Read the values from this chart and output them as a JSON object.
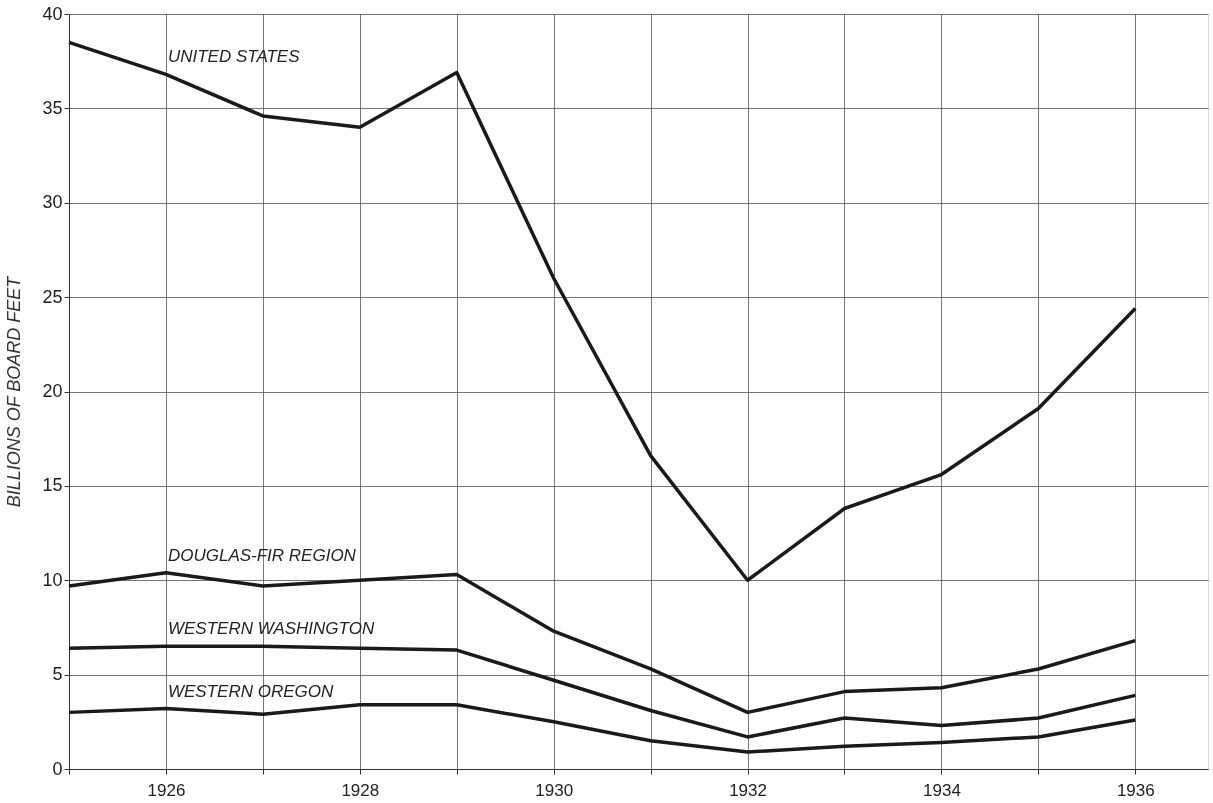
{
  "chart_data": {
    "type": "line",
    "ylabel": "BILLIONS OF BOARD FEET",
    "x": [
      1925,
      1926,
      1927,
      1928,
      1929,
      1930,
      1931,
      1932,
      1933,
      1934,
      1935,
      1936
    ],
    "series": [
      {
        "name": "UNITED STATES",
        "color": "#1a1a1a",
        "values": [
          38.5,
          36.8,
          34.6,
          34.0,
          36.9,
          26.0,
          16.6,
          10.0,
          13.8,
          15.6,
          19.1,
          24.4
        ]
      },
      {
        "name": "DOUGLAS-FIR REGION",
        "color": "#1a1a1a",
        "values": [
          9.7,
          10.4,
          9.7,
          10.0,
          10.3,
          7.3,
          5.3,
          3.0,
          4.1,
          4.3,
          5.3,
          6.8
        ]
      },
      {
        "name": "WESTERN WASHINGTON",
        "color": "#1a1a1a",
        "values": [
          6.4,
          6.5,
          6.5,
          6.4,
          6.3,
          4.7,
          3.1,
          1.7,
          2.7,
          2.3,
          2.7,
          3.9
        ]
      },
      {
        "name": "WESTERN OREGON",
        "color": "#1a1a1a",
        "values": [
          3.0,
          3.2,
          2.9,
          3.4,
          3.4,
          2.5,
          1.5,
          0.9,
          1.2,
          1.4,
          1.7,
          2.6
        ]
      }
    ],
    "xlim": [
      1925,
      1936.75
    ],
    "xticks": [
      {
        "value": 1925,
        "label": null
      },
      1926,
      {
        "value": 1927,
        "label": null
      },
      1928,
      {
        "value": 1929,
        "label": null
      },
      1930,
      {
        "value": 1931,
        "label": null
      },
      1932,
      {
        "value": 1933,
        "label": null
      },
      1934,
      {
        "value": 1935,
        "label": null
      },
      1936
    ],
    "ylim": [
      0,
      40
    ],
    "yticks": [
      0,
      5,
      10,
      15,
      20,
      25,
      30,
      35,
      40
    ],
    "grid": true,
    "legend": false,
    "marker": "none",
    "line_style": "solid"
  }
}
